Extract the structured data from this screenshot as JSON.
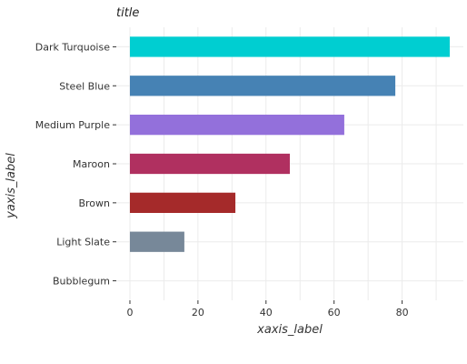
{
  "chart_data": {
    "type": "bar",
    "orientation": "horizontal",
    "title": "title",
    "xlabel": "xaxis_label",
    "ylabel": "yaxis_label",
    "categories": [
      "Bubblegum",
      "Light Slate",
      "Brown",
      "Maroon",
      "Medium Purple",
      "Steel Blue",
      "Dark Turquoise"
    ],
    "values": [
      0,
      16,
      31,
      47,
      63,
      78,
      94
    ],
    "colors": [
      "#ff69b4",
      "#778899",
      "#a52a2a",
      "#b03060",
      "#9370db",
      "#4682b4",
      "#00ced1"
    ],
    "xlim": [
      -4,
      98
    ],
    "xticks": [
      0,
      20,
      40,
      60,
      80
    ],
    "grid": true,
    "legend": "none"
  }
}
